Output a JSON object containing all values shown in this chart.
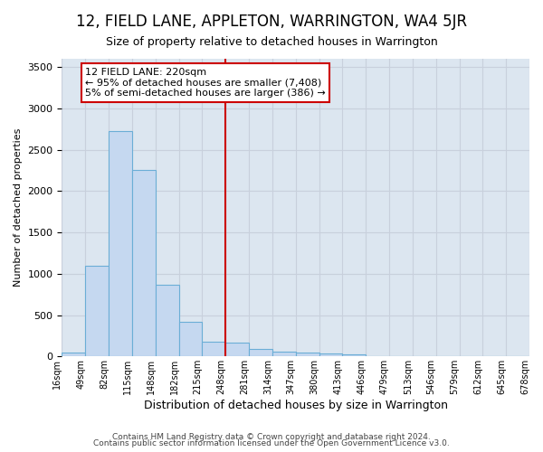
{
  "title": "12, FIELD LANE, APPLETON, WARRINGTON, WA4 5JR",
  "subtitle": "Size of property relative to detached houses in Warrington",
  "xlabel": "Distribution of detached houses by size in Warrington",
  "ylabel": "Number of detached properties",
  "footer1": "Contains HM Land Registry data © Crown copyright and database right 2024.",
  "footer2": "Contains public sector information licensed under the Open Government Licence v3.0.",
  "annotation_line1": "12 FIELD LANE: 220sqm",
  "annotation_line2": "← 95% of detached houses are smaller (7,408)",
  "annotation_line3": "5% of semi-detached houses are larger (386) →",
  "bar_values": [
    50,
    1100,
    2725,
    2250,
    870,
    420,
    175,
    165,
    90,
    60,
    50,
    35,
    20,
    0,
    0,
    0,
    0,
    0,
    0,
    0
  ],
  "bin_labels": [
    "16sqm",
    "49sqm",
    "82sqm",
    "115sqm",
    "148sqm",
    "182sqm",
    "215sqm",
    "248sqm",
    "281sqm",
    "314sqm",
    "347sqm",
    "380sqm",
    "413sqm",
    "446sqm",
    "479sqm",
    "513sqm",
    "546sqm",
    "579sqm",
    "612sqm",
    "645sqm",
    "678sqm"
  ],
  "bar_color": "#c5d8f0",
  "bar_edge_color": "#6baed6",
  "vline_color": "#cc0000",
  "annotation_box_color": "#cc0000",
  "grid_color": "#c8d0dc",
  "bg_color": "#dce6f0",
  "ylim": [
    0,
    3600
  ],
  "yticks": [
    0,
    500,
    1000,
    1500,
    2000,
    2500,
    3000,
    3500
  ],
  "title_fontsize": 12,
  "subtitle_fontsize": 9,
  "ylabel_fontsize": 8,
  "xlabel_fontsize": 9,
  "footer_fontsize": 6.5,
  "annotation_fontsize": 8
}
